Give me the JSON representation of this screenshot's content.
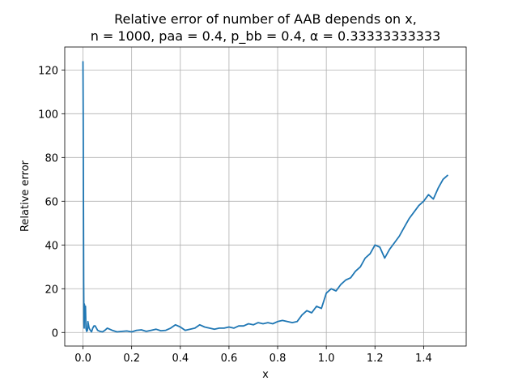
{
  "chart_data": {
    "type": "line",
    "title": "Relative error of number of AAB depends on x,",
    "subtitle": "n = 1000, paa = 0.4, p_bb = 0.4, α = 0.33333333333",
    "xlabel": "x",
    "ylabel": "Relative error",
    "xlim": [
      -0.075,
      1.575
    ],
    "ylim": [
      -6.2,
      130.5
    ],
    "xticks": [
      0.0,
      0.2,
      0.4,
      0.6,
      0.8,
      1.0,
      1.2,
      1.4
    ],
    "xtick_labels": [
      "0.0",
      "0.2",
      "0.4",
      "0.6",
      "0.8",
      "1.0",
      "1.2",
      "1.4"
    ],
    "yticks": [
      0,
      20,
      40,
      60,
      80,
      100,
      120
    ],
    "ytick_labels": [
      "0",
      "20",
      "40",
      "60",
      "80",
      "100",
      "120"
    ],
    "grid": true,
    "color": "#1f77b4",
    "series": [
      {
        "x": [
          0.0,
          0.001,
          0.002,
          0.003,
          0.004,
          0.005,
          0.006,
          0.008,
          0.01,
          0.012,
          0.015,
          0.018,
          0.02,
          0.025,
          0.03,
          0.035,
          0.04,
          0.045,
          0.05,
          0.06,
          0.07,
          0.08,
          0.09,
          0.1,
          0.12,
          0.14,
          0.16,
          0.18,
          0.2,
          0.22,
          0.24,
          0.26,
          0.28,
          0.3,
          0.32,
          0.34,
          0.36,
          0.38,
          0.4,
          0.42,
          0.44,
          0.46,
          0.48,
          0.5,
          0.52,
          0.54,
          0.56,
          0.58,
          0.6,
          0.62,
          0.64,
          0.66,
          0.68,
          0.7,
          0.72,
          0.74,
          0.76,
          0.78,
          0.8,
          0.82,
          0.84,
          0.86,
          0.88,
          0.9,
          0.92,
          0.94,
          0.96,
          0.98,
          1.0,
          1.02,
          1.04,
          1.06,
          1.08,
          1.1,
          1.12,
          1.14,
          1.16,
          1.18,
          1.2,
          1.22,
          1.24,
          1.26,
          1.28,
          1.3,
          1.32,
          1.34,
          1.36,
          1.38,
          1.4,
          1.42,
          1.44,
          1.46,
          1.48,
          1.5
        ],
        "y": [
          124,
          100,
          60,
          23,
          5,
          2,
          13,
          8,
          12,
          2,
          0.5,
          1,
          5,
          2,
          1,
          0.3,
          2,
          3,
          3,
          1,
          0.5,
          0.3,
          1,
          2,
          1,
          0.3,
          0.5,
          0.7,
          0.3,
          1,
          1.2,
          0.5,
          1,
          1.5,
          0.8,
          1,
          2,
          3.5,
          2.5,
          1,
          1.5,
          2,
          3.5,
          2.5,
          2,
          1.5,
          2,
          2,
          2.5,
          2,
          3,
          3,
          4,
          3.5,
          4.5,
          4,
          4.5,
          4,
          5,
          5.5,
          5,
          4.5,
          5,
          8,
          10,
          9,
          12,
          11,
          18,
          20,
          19,
          22,
          24,
          25,
          28,
          30,
          34,
          36,
          40,
          39,
          34,
          38,
          41,
          44,
          48,
          52,
          55,
          58,
          60,
          63,
          61,
          66,
          70,
          72
        ]
      }
    ]
  }
}
